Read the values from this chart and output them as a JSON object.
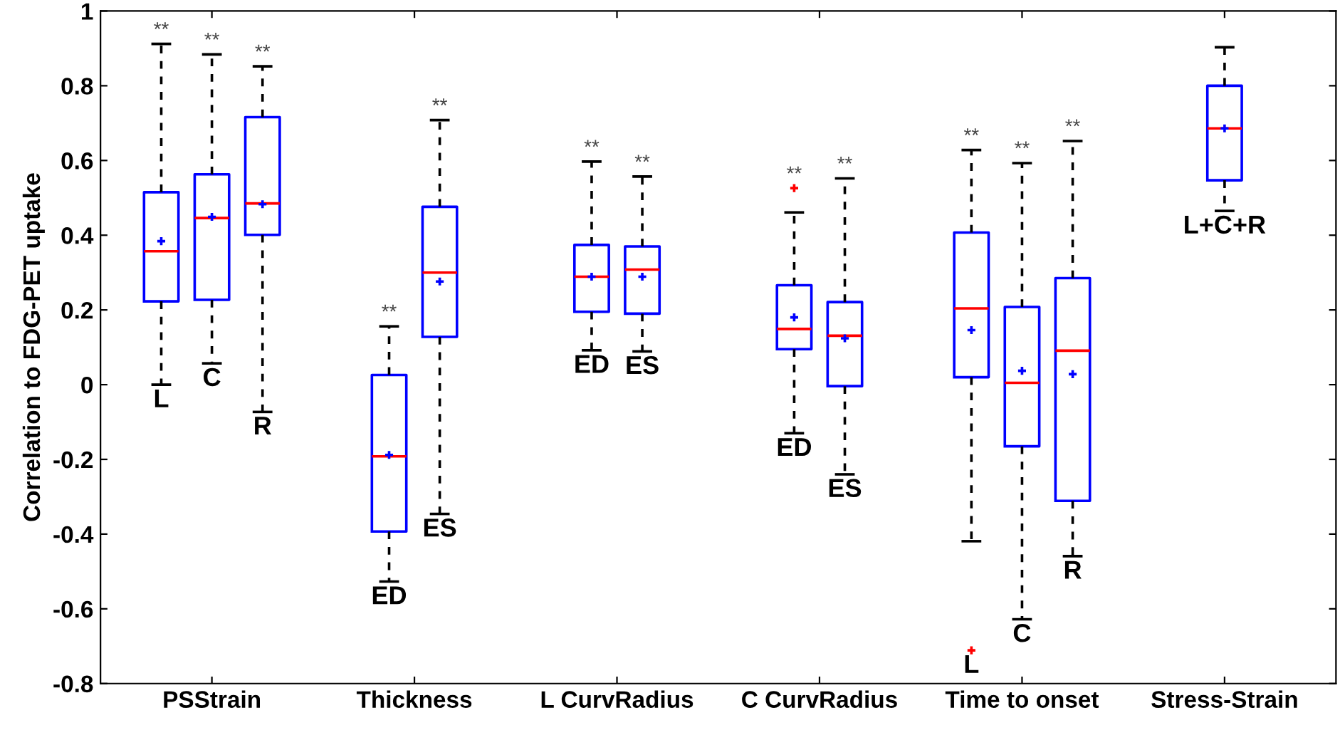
{
  "chart_data": {
    "type": "box",
    "ylabel": "Correlation to FDG-PET uptake",
    "categories": [
      "PSStrain",
      "Thickness",
      "L CurvRadius",
      "C CurvRadius",
      "Time to onset",
      "Stress-Strain"
    ],
    "ylim": [
      -0.8,
      1
    ],
    "yticks": [
      -0.8,
      -0.6,
      -0.4,
      -0.2,
      0,
      0.2,
      0.4,
      0.6,
      0.8,
      1
    ],
    "grid": false,
    "marker": "cross",
    "series": [
      {
        "color": "#0000ff",
        "boxes": [
          {
            "low": 0.0,
            "q1": 0.223,
            "median": 0.357,
            "q3": 0.515,
            "high": 0.912,
            "mean": 0.384
          },
          {
            "low": -0.527,
            "q1": -0.393,
            "median": -0.192,
            "q3": 0.026,
            "high": 0.156,
            "mean": -0.188
          },
          {
            "low": 0.092,
            "q1": 0.195,
            "median": 0.289,
            "q3": 0.374,
            "high": 0.597,
            "mean": 0.289
          },
          {
            "low": -0.13,
            "q1": 0.095,
            "median": 0.149,
            "q3": 0.266,
            "high": 0.461,
            "mean": 0.18,
            "outliers": [
              0.526
            ]
          },
          {
            "low": -0.419,
            "q1": 0.02,
            "median": 0.204,
            "q3": 0.407,
            "high": 0.628,
            "mean": 0.146,
            "outliers": [
              -0.711
            ]
          },
          {
            "low": 0.465,
            "q1": 0.547,
            "median": 0.686,
            "q3": 0.8,
            "high": 0.903,
            "mean": 0.686
          }
        ]
      },
      {
        "color": "#0000ff",
        "boxes": [
          {
            "low": 0.057,
            "q1": 0.227,
            "median": 0.446,
            "q3": 0.563,
            "high": 0.884,
            "mean": 0.449
          },
          {
            "low": -0.346,
            "q1": 0.128,
            "median": 0.3,
            "q3": 0.476,
            "high": 0.708,
            "mean": 0.276
          },
          {
            "low": 0.089,
            "q1": 0.19,
            "median": 0.308,
            "q3": 0.37,
            "high": 0.557,
            "mean": 0.289
          },
          {
            "low": -0.24,
            "q1": -0.004,
            "median": 0.131,
            "q3": 0.221,
            "high": 0.552,
            "mean": 0.124
          },
          {
            "low": -0.628,
            "q1": -0.165,
            "median": 0.005,
            "q3": 0.208,
            "high": 0.593,
            "mean": 0.037
          },
          null
        ]
      },
      {
        "color": "#0000ff",
        "boxes": [
          {
            "low": -0.073,
            "q1": 0.401,
            "median": 0.485,
            "q3": 0.716,
            "high": 0.852,
            "mean": 0.483
          },
          null,
          null,
          null,
          {
            "low": -0.459,
            "q1": -0.311,
            "median": 0.091,
            "q3": 0.285,
            "high": 0.652,
            "mean": 0.028
          },
          null
        ]
      }
    ],
    "annotations": [
      "L",
      "C",
      "R",
      "ED",
      "ES",
      "ED",
      "ES",
      "ED",
      "ES",
      "L",
      "C",
      "R",
      "L+C+R",
      "**",
      "**",
      "**",
      "**",
      "**",
      "**",
      "**",
      "**",
      "**",
      "**",
      "**",
      "**"
    ]
  }
}
